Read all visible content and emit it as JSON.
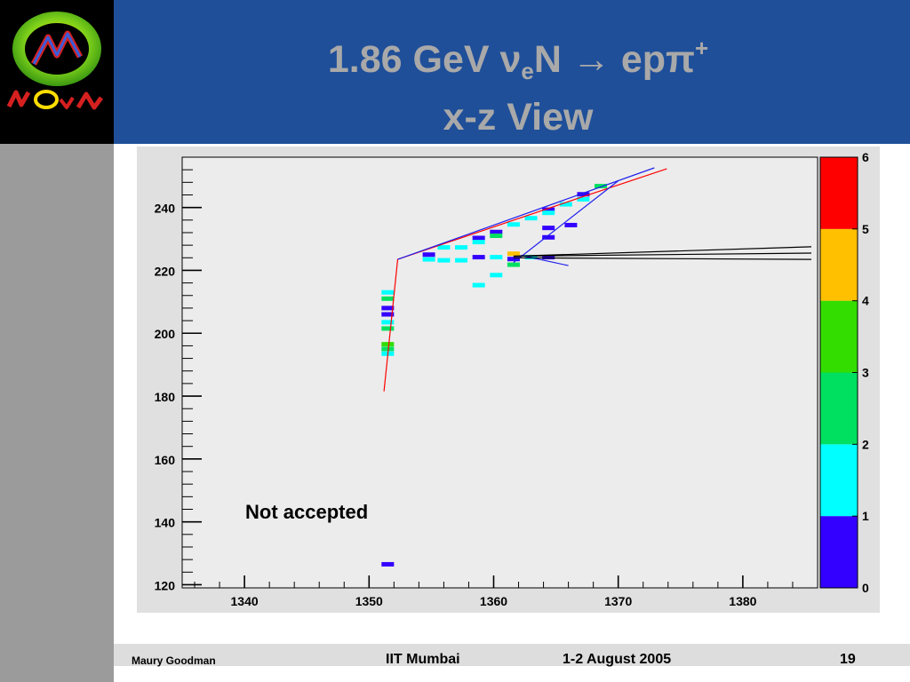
{
  "slide": {
    "title": {
      "line1": {
        "pre": "1.86 GeV ",
        "nu": "ν",
        "nu_sub": "e",
        "mid": "N ",
        "arrow": "→",
        "post": " ep",
        "pi": "π",
        "pi_sup": "+"
      },
      "line2": "x-z View"
    },
    "logo": {
      "icon": "nova-logo",
      "text": "NOvA"
    },
    "annotation": "Not accepted",
    "footer": {
      "author": "Maury Goodman",
      "venue": "IIT Mumbai",
      "date": "1-2 August 2005",
      "page": "19"
    },
    "colors": {
      "header_bg": "#1f4f99",
      "title_text": "#a9a9a9",
      "side_bar": "#9b9b9b",
      "plot_bg": "#e0e0e0",
      "frame_bg": "#ececec"
    }
  },
  "chart_data": {
    "type": "heatmap",
    "title": "",
    "xlabel": "",
    "ylabel": "",
    "xlim": [
      1335,
      1386
    ],
    "ylim": [
      119,
      256
    ],
    "x_ticks": [
      "1340",
      "1350",
      "1360",
      "1370",
      "1380"
    ],
    "x_tick_values": [
      1340,
      1350,
      1360,
      1370,
      1380
    ],
    "y_ticks": [
      "120",
      "140",
      "160",
      "180",
      "200",
      "220",
      "240"
    ],
    "y_tick_values": [
      120,
      140,
      160,
      180,
      200,
      220,
      240
    ],
    "colorbar": {
      "min": 0,
      "max": 6,
      "ticks": [
        "0",
        "1",
        "2",
        "3",
        "4",
        "5",
        "6"
      ],
      "bands": [
        {
          "from": 0,
          "to": 1,
          "color": "#3300ff"
        },
        {
          "from": 1,
          "to": 2,
          "color": "#00ffff"
        },
        {
          "from": 2,
          "to": 3,
          "color": "#00e060"
        },
        {
          "from": 3,
          "to": 4,
          "color": "#33dd00"
        },
        {
          "from": 4,
          "to": 5,
          "color": "#ffc000"
        },
        {
          "from": 5,
          "to": 6,
          "color": "#ff0000"
        }
      ]
    },
    "hits": [
      {
        "x": 1354.8,
        "y": 225.0,
        "v": 0.5
      },
      {
        "x": 1354.8,
        "y": 223.5,
        "v": 1.5
      },
      {
        "x": 1356.0,
        "y": 223.2,
        "v": 1.5
      },
      {
        "x": 1356.0,
        "y": 227.3,
        "v": 1.5
      },
      {
        "x": 1357.4,
        "y": 223.2,
        "v": 1.5
      },
      {
        "x": 1357.4,
        "y": 227.3,
        "v": 1.5
      },
      {
        "x": 1358.8,
        "y": 230.3,
        "v": 0.5
      },
      {
        "x": 1358.8,
        "y": 229.0,
        "v": 1.5
      },
      {
        "x": 1358.8,
        "y": 224.2,
        "v": 0.5
      },
      {
        "x": 1358.8,
        "y": 215.3,
        "v": 1.5
      },
      {
        "x": 1360.2,
        "y": 232.2,
        "v": 0.5
      },
      {
        "x": 1360.2,
        "y": 231.0,
        "v": 2.5
      },
      {
        "x": 1360.2,
        "y": 224.2,
        "v": 1.5
      },
      {
        "x": 1360.2,
        "y": 218.5,
        "v": 1.5
      },
      {
        "x": 1361.6,
        "y": 234.6,
        "v": 1.5
      },
      {
        "x": 1361.6,
        "y": 225.3,
        "v": 4.5
      },
      {
        "x": 1361.6,
        "y": 223.6,
        "v": 0.5
      },
      {
        "x": 1361.6,
        "y": 221.8,
        "v": 2.5
      },
      {
        "x": 1363.0,
        "y": 236.6,
        "v": 1.5
      },
      {
        "x": 1363.0,
        "y": 224.2,
        "v": 1.5
      },
      {
        "x": 1364.4,
        "y": 239.3,
        "v": 0.5
      },
      {
        "x": 1364.4,
        "y": 238.3,
        "v": 1.5
      },
      {
        "x": 1364.4,
        "y": 233.5,
        "v": 0.5
      },
      {
        "x": 1364.4,
        "y": 230.5,
        "v": 0.5
      },
      {
        "x": 1364.4,
        "y": 224.2,
        "v": 0.5
      },
      {
        "x": 1365.8,
        "y": 241.0,
        "v": 1.5
      },
      {
        "x": 1366.2,
        "y": 234.4,
        "v": 0.5
      },
      {
        "x": 1367.2,
        "y": 244.2,
        "v": 0.5
      },
      {
        "x": 1367.2,
        "y": 242.6,
        "v": 1.5
      },
      {
        "x": 1368.6,
        "y": 246.8,
        "v": 2.5
      },
      {
        "x": 1351.5,
        "y": 213.0,
        "v": 1.5
      },
      {
        "x": 1351.5,
        "y": 211.0,
        "v": 2.5
      },
      {
        "x": 1351.5,
        "y": 208.0,
        "v": 0.5
      },
      {
        "x": 1351.5,
        "y": 206.0,
        "v": 0.5
      },
      {
        "x": 1351.5,
        "y": 203.5,
        "v": 1.5
      },
      {
        "x": 1351.5,
        "y": 201.5,
        "v": 2.5
      },
      {
        "x": 1351.5,
        "y": 196.5,
        "v": 3.5
      },
      {
        "x": 1351.5,
        "y": 195.0,
        "v": 2.5
      },
      {
        "x": 1351.5,
        "y": 193.5,
        "v": 1.5
      },
      {
        "x": 1351.5,
        "y": 126.5,
        "v": 0.5
      }
    ],
    "tracks": [
      {
        "name": "",
        "color": "#ff0000",
        "points": [
          [
            1351.2,
            181.5
          ],
          [
            1352.3,
            223.5
          ],
          [
            1366.7,
            242.8
          ],
          [
            1373.9,
            252.3
          ]
        ]
      },
      {
        "name": "",
        "color": "#2020ee",
        "points": [
          [
            1352.3,
            223.5
          ],
          [
            1372.9,
            252.6
          ]
        ]
      },
      {
        "name": "",
        "color": "#2020ee",
        "points": [
          [
            1361.6,
            222.5
          ],
          [
            1370.0,
            248.5
          ]
        ]
      },
      {
        "name": "",
        "color": "#2020ee",
        "points": [
          [
            1362.2,
            224.8
          ],
          [
            1366.0,
            221.5
          ]
        ]
      },
      {
        "name": "",
        "color": "#000000",
        "points": [
          [
            1361.6,
            224.5
          ],
          [
            1385.5,
            227.5
          ]
        ]
      },
      {
        "name": "",
        "color": "#000000",
        "points": [
          [
            1361.6,
            224.5
          ],
          [
            1385.5,
            225.5
          ]
        ]
      },
      {
        "name": "",
        "color": "#000000",
        "points": [
          [
            1361.6,
            224.0
          ],
          [
            1385.5,
            223.5
          ]
        ]
      }
    ]
  }
}
